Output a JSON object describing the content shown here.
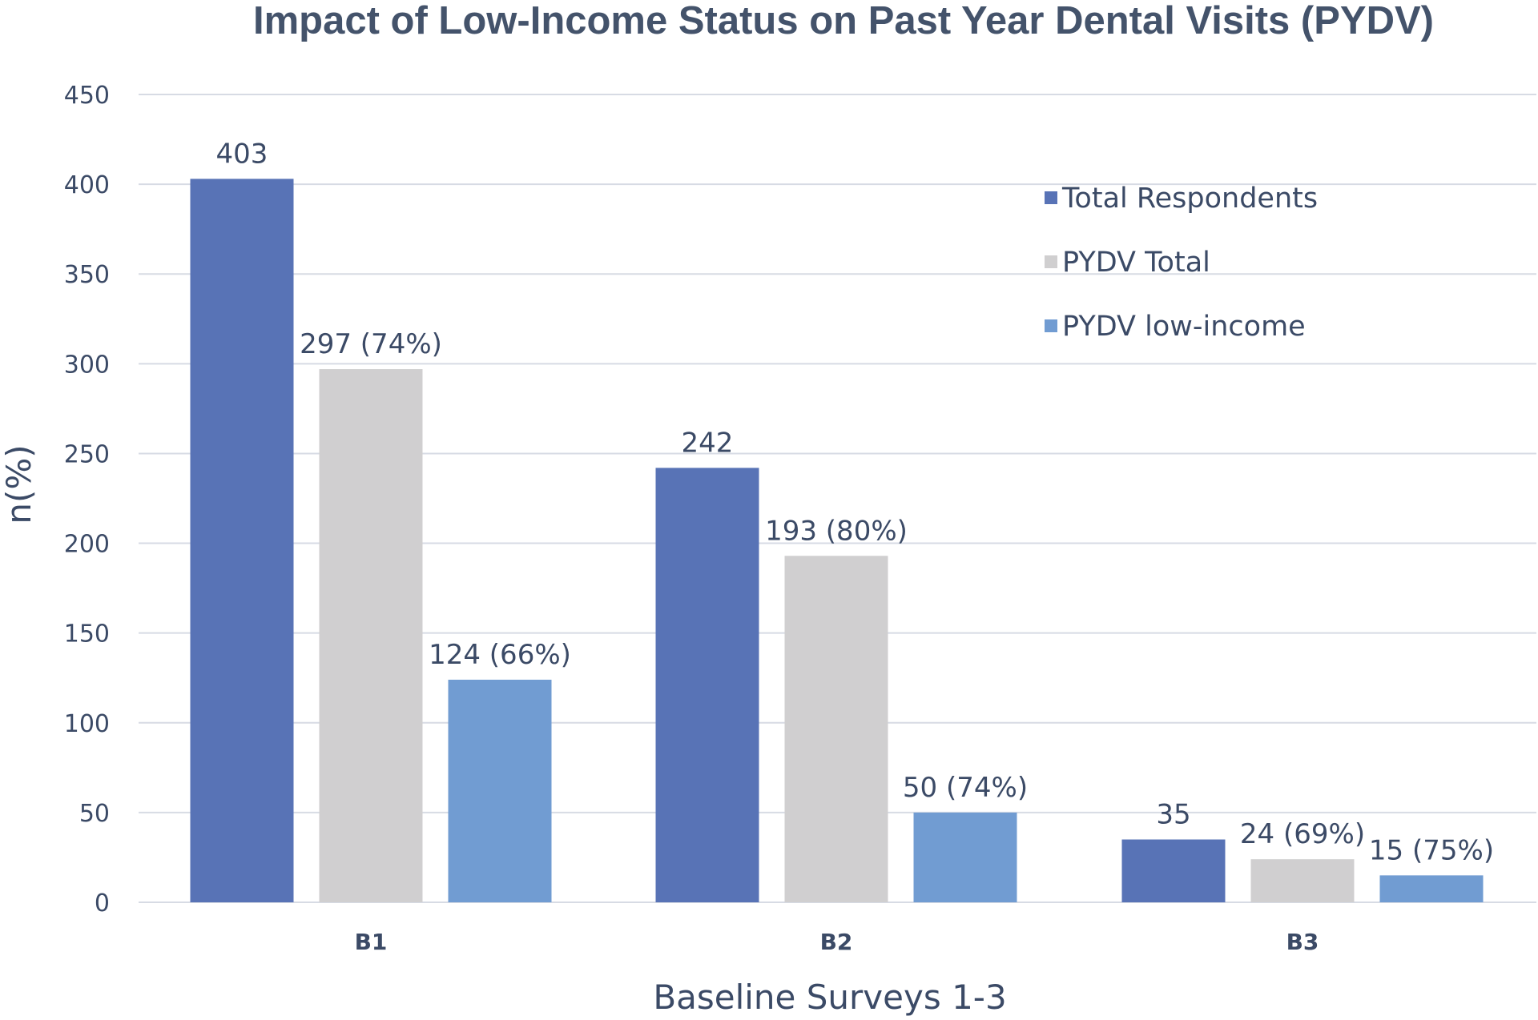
{
  "chart_data": {
    "type": "bar",
    "title": "Impact of Low-Income Status on Past Year Dental Visits (PYDV)",
    "xlabel": "Baseline Surveys 1-3",
    "ylabel": "n(%)",
    "ylim": [
      0,
      450
    ],
    "yticks": [
      0,
      50,
      100,
      150,
      200,
      250,
      300,
      350,
      400,
      450
    ],
    "grid": true,
    "legend_position": "top-right",
    "categories": [
      "B1",
      "B2",
      "B3"
    ],
    "series": [
      {
        "name": "Total Respondents",
        "color": "#5873b6",
        "values": [
          403,
          242,
          35
        ],
        "labels": [
          "403",
          "242",
          "35"
        ]
      },
      {
        "name": "PYDV Total",
        "color": "#d0cfd0",
        "values": [
          297,
          193,
          24
        ],
        "labels": [
          "297 (74%)",
          "193 (80%)",
          "24 (69%)"
        ]
      },
      {
        "name": "PYDV low-income",
        "color": "#719cd2",
        "values": [
          124,
          50,
          15
        ],
        "labels": [
          "124 (66%)",
          "50 (74%)",
          "15 (75%)"
        ]
      }
    ]
  }
}
